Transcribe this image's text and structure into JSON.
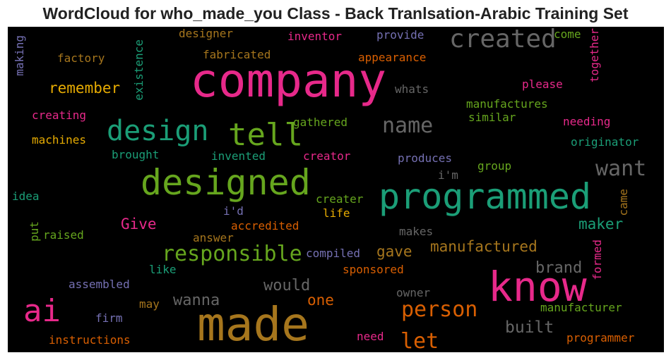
{
  "title": "WordCloud for who_made_you Class - Back Tranlsation-Arabic Training Set",
  "words": [
    {
      "text": "company",
      "color": "#e7298a"
    },
    {
      "text": "made",
      "color": "#a6761d"
    },
    {
      "text": "programmed",
      "color": "#1b9e77"
    },
    {
      "text": "know",
      "color": "#e7298a"
    },
    {
      "text": "designed",
      "color": "#66a61e"
    },
    {
      "text": "design",
      "color": "#1b9e77"
    },
    {
      "text": "tell",
      "color": "#66a61e"
    },
    {
      "text": "created",
      "color": "#666666"
    },
    {
      "text": "ai",
      "color": "#e7298a"
    },
    {
      "text": "responsible",
      "color": "#66a61e"
    },
    {
      "text": "person",
      "color": "#d95f02"
    },
    {
      "text": "name",
      "color": "#666666"
    },
    {
      "text": "want",
      "color": "#666666"
    },
    {
      "text": "let",
      "color": "#d95f02"
    },
    {
      "text": "built",
      "color": "#666666"
    },
    {
      "text": "would",
      "color": "#666666"
    },
    {
      "text": "wanna",
      "color": "#666666"
    },
    {
      "text": "brand",
      "color": "#666666"
    },
    {
      "text": "manufactured",
      "color": "#a6761d"
    },
    {
      "text": "maker",
      "color": "#1b9e77"
    },
    {
      "text": "Give",
      "color": "#e7298a"
    },
    {
      "text": "gave",
      "color": "#a6761d"
    },
    {
      "text": "one",
      "color": "#d95f02"
    },
    {
      "text": "remember",
      "color": "#e6ab02"
    },
    {
      "text": "designer",
      "color": "#a6761d"
    },
    {
      "text": "inventor",
      "color": "#e7298a"
    },
    {
      "text": "provide",
      "color": "#7570b3"
    },
    {
      "text": "come",
      "color": "#66a61e"
    },
    {
      "text": "fabricated",
      "color": "#a6761d"
    },
    {
      "text": "appearance",
      "color": "#d95f02"
    },
    {
      "text": "factory",
      "color": "#a6761d"
    },
    {
      "text": "whats",
      "color": "#666666"
    },
    {
      "text": "please",
      "color": "#e7298a"
    },
    {
      "text": "manufactures",
      "color": "#66a61e"
    },
    {
      "text": "creating",
      "color": "#e7298a"
    },
    {
      "text": "gathered",
      "color": "#66a61e"
    },
    {
      "text": "similar",
      "color": "#66a61e"
    },
    {
      "text": "needing",
      "color": "#e7298a"
    },
    {
      "text": "machines",
      "color": "#e6ab02"
    },
    {
      "text": "originator",
      "color": "#1b9e77"
    },
    {
      "text": "brought",
      "color": "#1b9e77"
    },
    {
      "text": "invented",
      "color": "#1b9e77"
    },
    {
      "text": "creator",
      "color": "#e7298a"
    },
    {
      "text": "produces",
      "color": "#7570b3"
    },
    {
      "text": "group",
      "color": "#66a61e"
    },
    {
      "text": "i'm",
      "color": "#666666"
    },
    {
      "text": "idea",
      "color": "#1b9e77"
    },
    {
      "text": "creater",
      "color": "#66a61e"
    },
    {
      "text": "i'd",
      "color": "#7570b3"
    },
    {
      "text": "life",
      "color": "#e6ab02"
    },
    {
      "text": "accredited",
      "color": "#d95f02"
    },
    {
      "text": "raised",
      "color": "#66a61e"
    },
    {
      "text": "answer",
      "color": "#a6761d"
    },
    {
      "text": "makes",
      "color": "#666666"
    },
    {
      "text": "compiled",
      "color": "#7570b3"
    },
    {
      "text": "like",
      "color": "#1b9e77"
    },
    {
      "text": "sponsored",
      "color": "#d95f02"
    },
    {
      "text": "assembled",
      "color": "#7570b3"
    },
    {
      "text": "owner",
      "color": "#666666"
    },
    {
      "text": "may",
      "color": "#a6761d"
    },
    {
      "text": "manufacturer",
      "color": "#66a61e"
    },
    {
      "text": "firm",
      "color": "#7570b3"
    },
    {
      "text": "need",
      "color": "#e7298a"
    },
    {
      "text": "instructions",
      "color": "#d95f02"
    },
    {
      "text": "programmer",
      "color": "#d95f02"
    },
    {
      "text": "making",
      "color": "#7570b3"
    },
    {
      "text": "existence",
      "color": "#1b9e77"
    },
    {
      "text": "together",
      "color": "#e7298a"
    },
    {
      "text": "came",
      "color": "#a6761d"
    },
    {
      "text": "formed",
      "color": "#e7298a"
    },
    {
      "text": "put",
      "color": "#66a61e"
    }
  ]
}
